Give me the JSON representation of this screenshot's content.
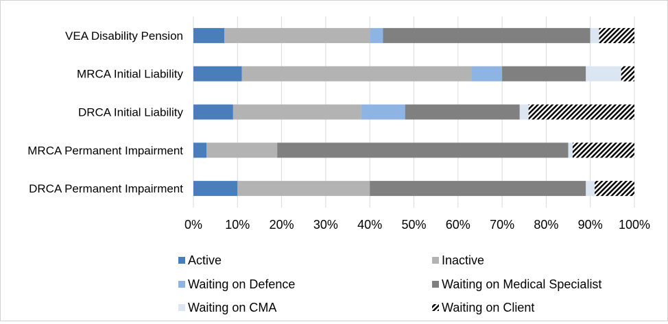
{
  "chart_data": {
    "type": "bar",
    "orientation": "horizontal",
    "stacked": "percent",
    "categories": [
      "VEA Disability Pension",
      "MRCA Initial Liability",
      "DRCA Initial Liability",
      "MRCA Permanent Impairment",
      "DRCA Permanent Impairment"
    ],
    "series": [
      {
        "name": "Active",
        "color": "#4a7ebb",
        "values": [
          7,
          11,
          9,
          3,
          10
        ]
      },
      {
        "name": "Inactive",
        "color": "#b3b3b3",
        "values": [
          33,
          52,
          29,
          16,
          30
        ]
      },
      {
        "name": "Waiting on Defence",
        "color": "#8eb4e3",
        "values": [
          3,
          7,
          10,
          0,
          0
        ]
      },
      {
        "name": "Waiting on Medical Specialist",
        "color": "#808080",
        "values": [
          47,
          19,
          26,
          66,
          49
        ]
      },
      {
        "name": "Waiting on CMA",
        "color": "#dce6f2",
        "values": [
          2,
          8,
          2,
          1,
          2
        ]
      },
      {
        "name": "Waiting on Client",
        "color": "pattern",
        "values": [
          8,
          3,
          24,
          14,
          9
        ]
      }
    ],
    "x_ticks": [
      "0%",
      "10%",
      "20%",
      "30%",
      "40%",
      "50%",
      "60%",
      "70%",
      "80%",
      "90%",
      "100%"
    ],
    "xlim": [
      0,
      100
    ],
    "grid": "vertical",
    "legend_position": "bottom"
  }
}
